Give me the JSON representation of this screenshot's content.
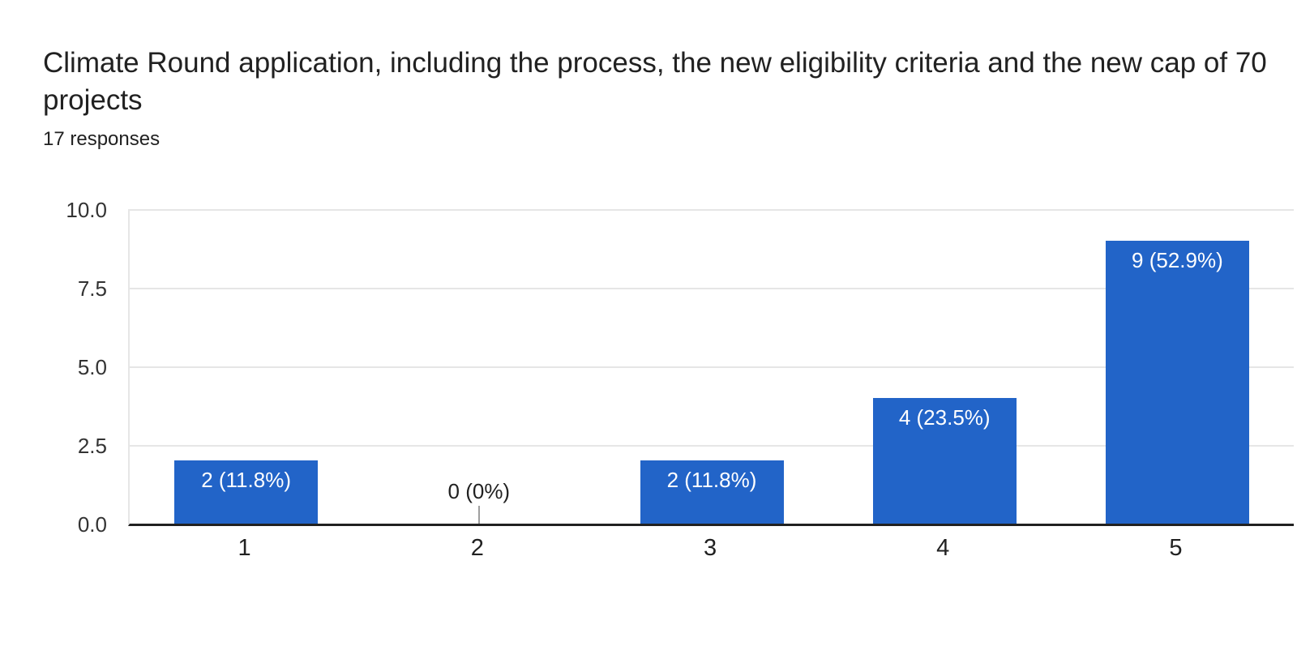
{
  "chart_data": {
    "type": "bar",
    "title": "Climate Round application, including the process, the new eligibility criteria and the new cap of 70 projects",
    "title_lines": [
      "Climate Round application, including the process, the new eligibility criteria and the new cap of 70",
      "projects"
    ],
    "subtitle": "17 responses",
    "total_responses": 17,
    "categories": [
      "1",
      "2",
      "3",
      "4",
      "5"
    ],
    "values": [
      2,
      0,
      2,
      4,
      9
    ],
    "percentages": [
      11.8,
      0,
      11.8,
      23.5,
      52.9
    ],
    "bar_labels": [
      "2 (11.8%)",
      "0 (0%)",
      "2 (11.8%)",
      "4 (23.5%)",
      "9 (52.9%)"
    ],
    "yticks": [
      "10.0",
      "7.5",
      "5.0",
      "2.5",
      "0.0"
    ],
    "ylim": [
      0,
      10
    ],
    "xlabel": "",
    "ylabel": "",
    "grid": true,
    "legend": "none",
    "colors": {
      "bar": "#2264c8",
      "bar_label_text": "#ffffff",
      "gridline": "#e6e6e6",
      "axis_line": "#212121",
      "zero_tick": "#9e9e9e",
      "text": "#212121",
      "background": "#ffffff"
    }
  }
}
